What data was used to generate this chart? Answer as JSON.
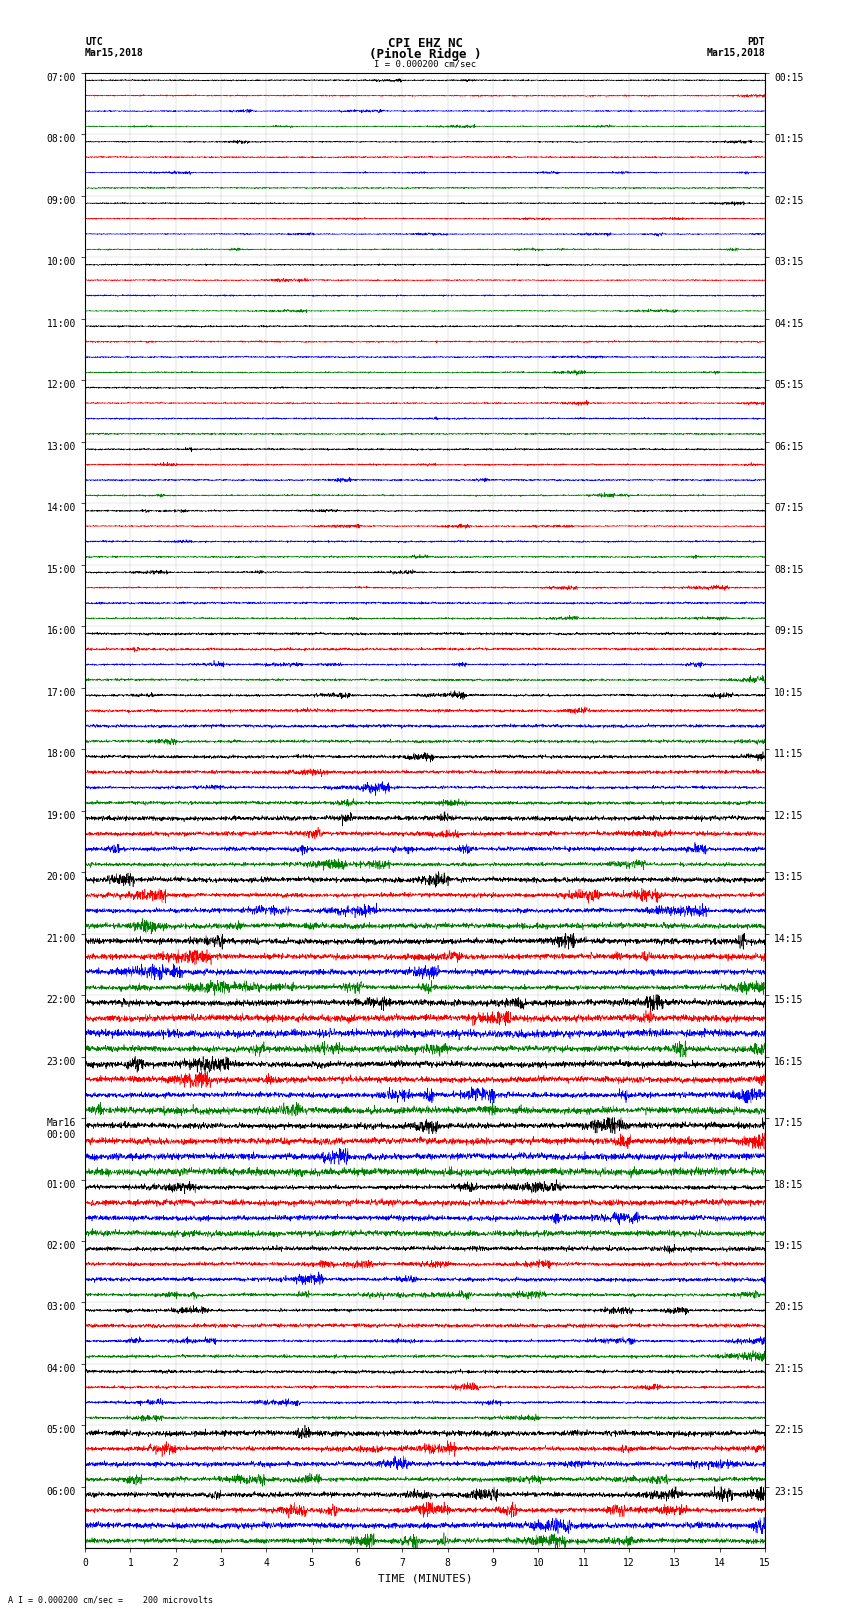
{
  "title_line1": "CPI EHZ NC",
  "title_line2": "(Pinole Ridge )",
  "scale_text": "I = 0.000200 cm/sec",
  "bottom_text": "A I = 0.000200 cm/sec =    200 microvolts",
  "utc_label": "UTC",
  "utc_date": "Mar15,2018",
  "pdt_label": "PDT",
  "pdt_date": "Mar15,2018",
  "xlabel": "TIME (MINUTES)",
  "left_times_utc": [
    "07:00",
    "08:00",
    "09:00",
    "10:00",
    "11:00",
    "12:00",
    "13:00",
    "14:00",
    "15:00",
    "16:00",
    "17:00",
    "18:00",
    "19:00",
    "20:00",
    "21:00",
    "22:00",
    "23:00",
    "Mar16\n00:00",
    "01:00",
    "02:00",
    "03:00",
    "04:00",
    "05:00",
    "06:00"
  ],
  "right_times_pdt": [
    "00:15",
    "01:15",
    "02:15",
    "03:15",
    "04:15",
    "05:15",
    "06:15",
    "07:15",
    "08:15",
    "09:15",
    "10:15",
    "11:15",
    "12:15",
    "13:15",
    "14:15",
    "15:15",
    "16:15",
    "17:15",
    "18:15",
    "19:15",
    "20:15",
    "21:15",
    "22:15",
    "23:15"
  ],
  "n_rows": 24,
  "traces_per_row": 4,
  "trace_colors": [
    "black",
    "red",
    "blue",
    "green"
  ],
  "minutes": 15,
  "background_color": "white",
  "noise_seed": 42,
  "title_fontsize": 9,
  "label_fontsize": 8,
  "tick_fontsize": 7,
  "amplitude_by_row": [
    0.18,
    0.18,
    0.18,
    0.18,
    0.2,
    0.2,
    0.22,
    0.22,
    0.25,
    0.3,
    0.38,
    0.45,
    0.6,
    0.75,
    0.85,
    0.9,
    0.9,
    0.88,
    0.7,
    0.55,
    0.45,
    0.38,
    0.7,
    0.85
  ]
}
